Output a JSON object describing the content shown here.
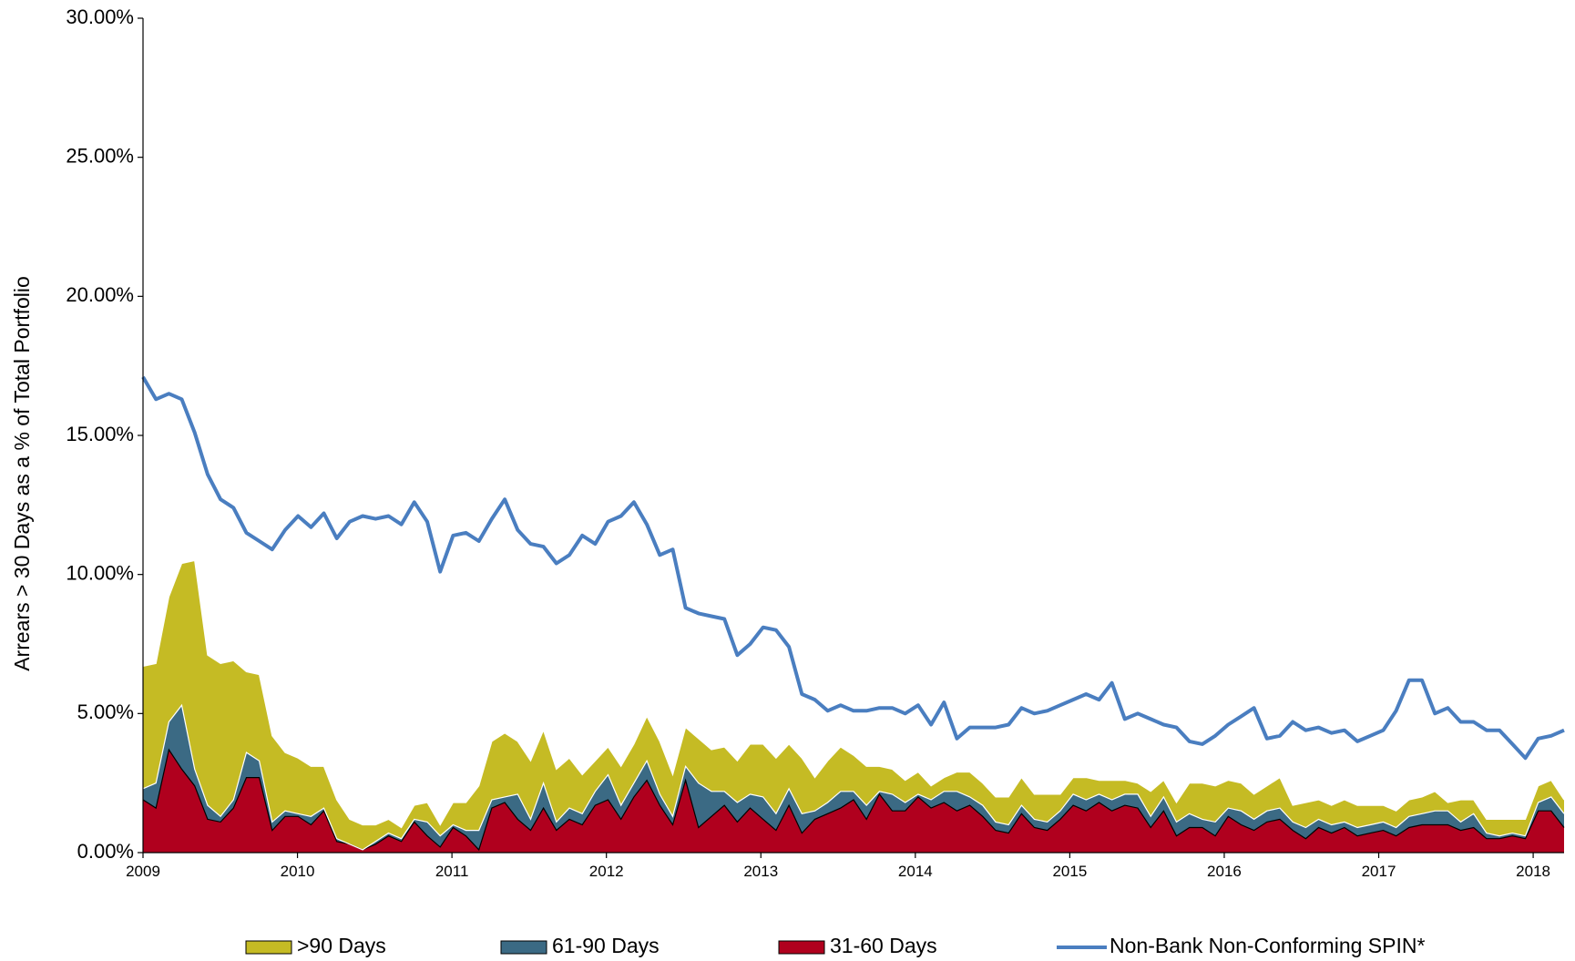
{
  "chart_data": {
    "type": "area",
    "ylabel": "Arrears > 30 Days as a % of Total Portfolio",
    "xlabel": "",
    "ylim": [
      0,
      30
    ],
    "xlim": [
      2009,
      2018.2
    ],
    "y_ticks": [
      "0.00%",
      "5.00%",
      "10.00%",
      "15.00%",
      "20.00%",
      "25.00%",
      "30.00%"
    ],
    "x_ticks": [
      "2009",
      "2010",
      "2011",
      "2012",
      "2013",
      "2014",
      "2015",
      "2016",
      "2017",
      "2018"
    ],
    "legend_position": "bottom",
    "stacked_areas": [
      {
        "name": "31-60 Days",
        "color": "#b0001e",
        "values": [
          1.9,
          1.6,
          3.7,
          3.0,
          2.4,
          1.2,
          1.1,
          1.6,
          2.7,
          2.7,
          0.8,
          1.3,
          1.3,
          1.0,
          1.5,
          0.4,
          0.3,
          0.1,
          0.3,
          0.6,
          0.4,
          1.1,
          0.6,
          0.2,
          0.9,
          0.6,
          0.1,
          1.6,
          1.8,
          1.2,
          0.8,
          1.6,
          0.8,
          1.2,
          1.0,
          1.7,
          1.9,
          1.2,
          2.0,
          2.6,
          1.7,
          1.0,
          2.6,
          0.9,
          1.3,
          1.7,
          1.1,
          1.6,
          1.2,
          0.8,
          1.7,
          0.7,
          1.2,
          1.4,
          1.6,
          1.9,
          1.2,
          2.1,
          1.5,
          1.5,
          2.0,
          1.6,
          1.8,
          1.5,
          1.7,
          1.3,
          0.8,
          0.7,
          1.4,
          0.9,
          0.8,
          1.2,
          1.7,
          1.5,
          1.8,
          1.5,
          1.7,
          1.6,
          0.9,
          1.5,
          0.6,
          0.9,
          0.9,
          0.6,
          1.3,
          1.0,
          0.8,
          1.1,
          1.2,
          0.8,
          0.5,
          0.9,
          0.7,
          0.9,
          0.6,
          0.7,
          0.8,
          0.6,
          0.9,
          1.0,
          1.0,
          1.0,
          0.8,
          0.9,
          0.5,
          0.5,
          0.6,
          0.5,
          1.5,
          1.5,
          0.9,
          1.6
        ]
      },
      {
        "name": "61-90 Days",
        "color": "#3b6a84",
        "values": [
          0.4,
          0.9,
          1.0,
          2.3,
          0.6,
          0.5,
          0.2,
          0.3,
          0.9,
          0.6,
          0.3,
          0.2,
          0.1,
          0.3,
          0.1,
          0.1,
          0.0,
          0.0,
          0.1,
          0.1,
          0.1,
          0.1,
          0.5,
          0.4,
          0.1,
          0.2,
          0.7,
          0.3,
          0.2,
          0.9,
          0.4,
          0.9,
          0.3,
          0.4,
          0.4,
          0.5,
          0.9,
          0.5,
          0.5,
          0.7,
          0.4,
          0.3,
          0.5,
          1.6,
          0.9,
          0.5,
          0.7,
          0.5,
          0.8,
          0.6,
          0.6,
          0.7,
          0.3,
          0.4,
          0.6,
          0.3,
          0.5,
          0.1,
          0.6,
          0.3,
          0.1,
          0.3,
          0.4,
          0.7,
          0.3,
          0.4,
          0.3,
          0.3,
          0.3,
          0.3,
          0.3,
          0.3,
          0.4,
          0.4,
          0.3,
          0.4,
          0.4,
          0.5,
          0.4,
          0.5,
          0.5,
          0.5,
          0.3,
          0.5,
          0.3,
          0.5,
          0.4,
          0.4,
          0.4,
          0.3,
          0.4,
          0.3,
          0.3,
          0.2,
          0.3,
          0.3,
          0.3,
          0.3,
          0.4,
          0.4,
          0.5,
          0.5,
          0.3,
          0.5,
          0.2,
          0.1,
          0.1,
          0.1,
          0.3,
          0.5,
          0.5,
          0.2
        ]
      },
      {
        "name": ">90 Days",
        "color": "#c5bb24",
        "values": [
          4.4,
          4.3,
          4.5,
          5.1,
          7.5,
          5.4,
          5.5,
          5.0,
          2.9,
          3.1,
          3.1,
          2.1,
          2.0,
          1.8,
          1.5,
          1.4,
          0.9,
          0.9,
          0.6,
          0.5,
          0.4,
          0.5,
          0.7,
          0.4,
          0.8,
          1.0,
          1.6,
          2.1,
          2.3,
          1.9,
          2.1,
          1.9,
          1.9,
          1.8,
          1.4,
          1.1,
          1.0,
          1.4,
          1.4,
          1.6,
          1.9,
          1.5,
          1.4,
          1.6,
          1.5,
          1.6,
          1.5,
          1.8,
          1.9,
          2.0,
          1.6,
          2.0,
          1.2,
          1.5,
          1.6,
          1.3,
          1.4,
          0.9,
          0.9,
          0.8,
          0.8,
          0.5,
          0.5,
          0.7,
          0.9,
          0.8,
          0.9,
          1.0,
          1.0,
          0.9,
          1.0,
          0.6,
          0.6,
          0.8,
          0.5,
          0.7,
          0.5,
          0.4,
          0.9,
          0.6,
          0.7,
          1.1,
          1.3,
          1.3,
          1.0,
          1.0,
          0.9,
          0.9,
          1.1,
          0.6,
          0.9,
          0.7,
          0.7,
          0.8,
          0.8,
          0.7,
          0.6,
          0.6,
          0.6,
          0.6,
          0.7,
          0.3,
          0.8,
          0.5,
          0.5,
          0.6,
          0.5,
          0.6,
          0.6,
          0.6,
          0.5,
          0.5
        ]
      }
    ],
    "line_series": {
      "name": "Non-Bank Non-Conforming SPIN*",
      "color": "#4a7ec0",
      "values": [
        17.1,
        16.3,
        16.5,
        16.3,
        15.1,
        13.6,
        12.7,
        12.4,
        11.5,
        11.2,
        10.9,
        11.6,
        12.1,
        11.7,
        12.2,
        11.3,
        11.9,
        12.1,
        12.0,
        12.1,
        11.8,
        12.6,
        11.9,
        10.1,
        11.4,
        11.5,
        11.2,
        12.0,
        12.7,
        11.6,
        11.1,
        11.0,
        10.4,
        10.7,
        11.4,
        11.1,
        11.9,
        12.1,
        12.6,
        11.8,
        10.7,
        10.9,
        8.8,
        8.6,
        8.5,
        8.4,
        7.1,
        7.5,
        8.1,
        8.0,
        7.4,
        5.7,
        5.5,
        5.1,
        5.3,
        5.1,
        5.1,
        5.2,
        5.2,
        5.0,
        5.3,
        4.6,
        5.4,
        4.1,
        4.5,
        4.5,
        4.5,
        4.6,
        5.2,
        5.0,
        5.1,
        5.3,
        5.5,
        5.7,
        5.5,
        6.1,
        4.8,
        5.0,
        4.8,
        4.6,
        4.5,
        4.0,
        3.9,
        4.2,
        4.6,
        4.9,
        5.2,
        4.1,
        4.2,
        4.7,
        4.4,
        4.5,
        4.3,
        4.4,
        4.0,
        4.2,
        4.4,
        5.1,
        6.2,
        6.2,
        5.0,
        5.2,
        4.7,
        4.7,
        4.4,
        4.4,
        3.9,
        3.4,
        4.1,
        4.2,
        4.4
      ]
    },
    "legend": [
      ">90 Days",
      "61-90 Days",
      "31-60 Days",
      "Non-Bank Non-Conforming SPIN*"
    ]
  }
}
